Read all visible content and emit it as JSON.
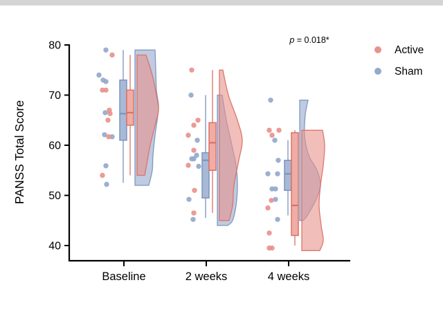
{
  "figure": {
    "background": "#ffffff",
    "top_bar_color": "#d5d5d5"
  },
  "chart_data": {
    "type": "raincloud (scatter + boxplot + half-violin)",
    "title": "",
    "ylabel": "PANSS Total Score",
    "xlabel": "",
    "ylim": [
      37,
      80
    ],
    "yticks": [
      40,
      50,
      60,
      70,
      80
    ],
    "categories": [
      "Baseline",
      "2 weeks",
      "4 weeks"
    ],
    "annotation": {
      "prefix_italic": "p",
      "text": " = 0.018*"
    },
    "legend": [
      {
        "label": "Active",
        "color": "#E8938C"
      },
      {
        "label": "Sham",
        "color": "#94A9CC"
      }
    ],
    "series": [
      {
        "name": "Sham",
        "color": "#94A9CC",
        "stroke": "#7A93C0",
        "box_fill": "#A8B9D6",
        "box_dx": -1,
        "violin_dx": 16,
        "boxes": [
          {
            "category": "Baseline",
            "low": 52.5,
            "q1": 61,
            "median": 66.3,
            "q3": 73,
            "high": 79
          },
          {
            "category": "2 weeks",
            "low": 45.5,
            "q1": 49.5,
            "median": 57,
            "q3": 58.5,
            "high": 70
          },
          {
            "category": "4 weeks",
            "low": 46,
            "q1": 51,
            "median": 54.3,
            "q3": 57,
            "high": 61
          }
        ],
        "violin_profiles": [
          [
            [
              79,
              29
            ],
            [
              75,
              30
            ],
            [
              71,
              31
            ],
            [
              68,
              34
            ],
            [
              66,
              33
            ],
            [
              62,
              29
            ],
            [
              58,
              26
            ],
            [
              55,
              25
            ],
            [
              52,
              20
            ]
          ],
          [
            [
              70,
              7
            ],
            [
              65,
              13
            ],
            [
              60,
              21
            ],
            [
              56,
              27
            ],
            [
              52,
              29
            ],
            [
              48,
              27
            ],
            [
              45,
              22
            ],
            [
              44,
              15
            ]
          ],
          [
            [
              69,
              12
            ],
            [
              66,
              8
            ],
            [
              62,
              7
            ],
            [
              58,
              13
            ],
            [
              55,
              25
            ],
            [
              52,
              30
            ],
            [
              49,
              23
            ],
            [
              46,
              11
            ],
            [
              45,
              5
            ]
          ]
        ],
        "points": [
          [
            [
              79,
              -26
            ],
            [
              74,
              -36
            ],
            [
              73,
              -30
            ],
            [
              72.7,
              -26
            ],
            [
              66.5,
              -27
            ],
            [
              62.1,
              -28
            ],
            [
              61.7,
              -17
            ],
            [
              55.9,
              -26
            ],
            [
              52.2,
              -25
            ]
          ],
          [
            [
              70,
              -22
            ],
            [
              61,
              -13
            ],
            [
              58,
              -14
            ],
            [
              57.3,
              -21
            ],
            [
              57.3,
              -18
            ],
            [
              55.8,
              -11
            ],
            [
              49.2,
              -25
            ],
            [
              45.2,
              -19
            ]
          ],
          [
            [
              69,
              -26
            ],
            [
              61,
              -20
            ],
            [
              57,
              -15
            ],
            [
              54.3,
              -30
            ],
            [
              54.3,
              -16
            ],
            [
              51.3,
              -24
            ],
            [
              51.3,
              -19
            ],
            [
              49.2,
              -19
            ],
            [
              45.2,
              -16
            ]
          ]
        ]
      },
      {
        "name": "Active",
        "color": "#E8938C",
        "stroke": "#DC7065",
        "box_fill": "#F0ACA5",
        "box_dx": 9,
        "violin_dx": 19,
        "boxes": [
          {
            "category": "Baseline",
            "low": 54,
            "q1": 64,
            "median": 66.5,
            "q3": 71,
            "high": 78
          },
          {
            "category": "2 weeks",
            "low": 46.5,
            "q1": 55,
            "median": 60.5,
            "q3": 64.5,
            "high": 75
          },
          {
            "category": "4 weeks",
            "low": 40,
            "q1": 42,
            "median": 48,
            "q3": 62.5,
            "high": 63
          }
        ],
        "violin_profiles": [
          [
            [
              78,
              13
            ],
            [
              74,
              22
            ],
            [
              70,
              28
            ],
            [
              67,
              31
            ],
            [
              64,
              26
            ],
            [
              60,
              19
            ],
            [
              57,
              15
            ],
            [
              54,
              11
            ]
          ],
          [
            [
              75,
              5
            ],
            [
              70,
              13
            ],
            [
              65,
              26
            ],
            [
              61,
              33
            ],
            [
              57,
              28
            ],
            [
              52,
              21
            ],
            [
              48,
              19
            ],
            [
              45,
              14
            ]
          ],
          [
            [
              63,
              30
            ],
            [
              60,
              33
            ],
            [
              56,
              31
            ],
            [
              52,
              27
            ],
            [
              48,
              25
            ],
            [
              44,
              28
            ],
            [
              41,
              31
            ],
            [
              39,
              26
            ]
          ]
        ],
        "points": [
          [
            [
              78,
              -17
            ],
            [
              71,
              -31
            ],
            [
              71,
              -26
            ],
            [
              67,
              -21
            ],
            [
              66.3,
              -20
            ],
            [
              65,
              -23
            ],
            [
              61.7,
              -22
            ],
            [
              54,
              -31
            ]
          ],
          [
            [
              75,
              -21
            ],
            [
              65,
              -12
            ],
            [
              64,
              -18
            ],
            [
              62,
              -26
            ],
            [
              59,
              -18
            ],
            [
              56,
              -26
            ],
            [
              51,
              -17
            ],
            [
              46.5,
              -18
            ]
          ],
          [
            [
              63,
              -28
            ],
            [
              63,
              -14
            ],
            [
              62,
              -24
            ],
            [
              49,
              -25
            ],
            [
              47.5,
              -30
            ],
            [
              42.5,
              -28
            ],
            [
              39.5,
              -28
            ],
            [
              39.5,
              -24
            ]
          ]
        ]
      }
    ],
    "layout_hints": {
      "grid": "off",
      "legend_position": "right-top",
      "half_violin_side": "right",
      "points_side": "left"
    }
  }
}
